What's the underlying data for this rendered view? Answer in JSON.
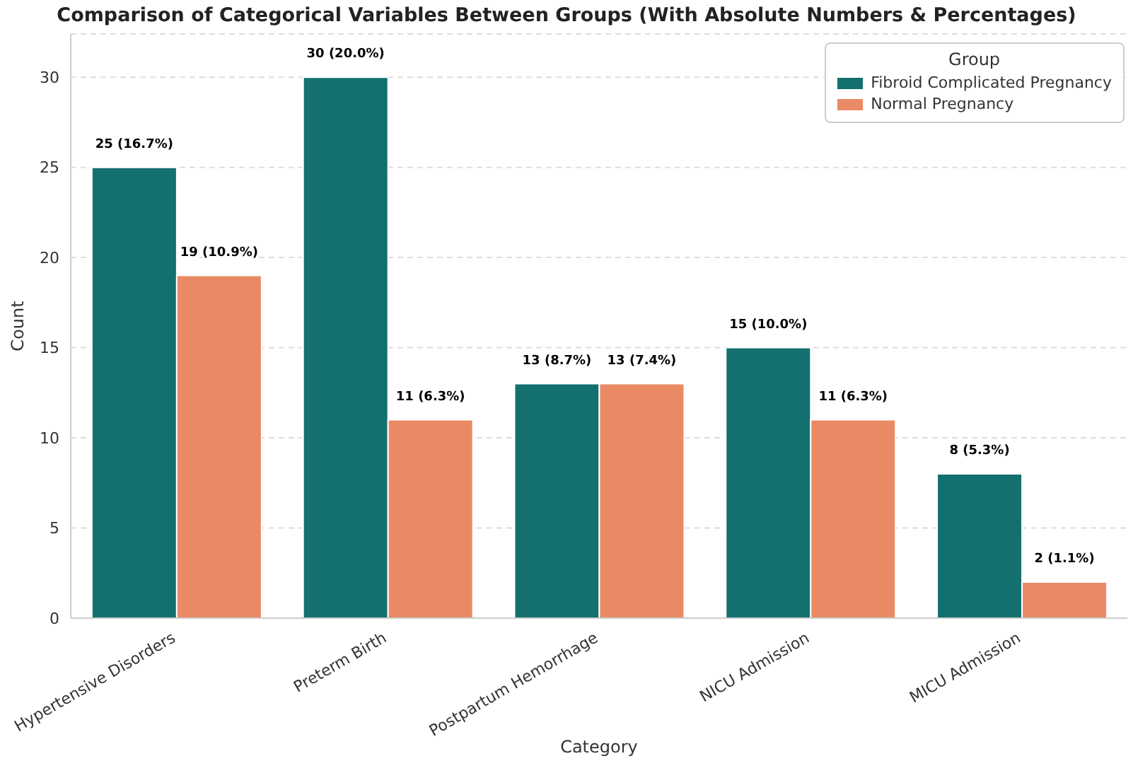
{
  "chart_data": {
    "type": "bar",
    "title": "Comparison of Categorical Variables Between Groups (With Absolute Numbers & Percentages)",
    "xlabel": "Category",
    "ylabel": "Count",
    "legend_title": "Group",
    "categories": [
      "Hypertensive Disorders",
      "Preterm Birth",
      "Postpartum Hemorrhage",
      "NICU Admission",
      "MICU Admission"
    ],
    "series": [
      {
        "name": "Fibroid Complicated Pregnancy",
        "color": "#13706e",
        "values": [
          25,
          30,
          13,
          15,
          8
        ],
        "value_labels": [
          "25 (16.7%)",
          "30 (20.0%)",
          "13 (8.7%)",
          "15 (10.0%)",
          "8 (5.3%)"
        ]
      },
      {
        "name": "Normal Pregnancy",
        "color": "#e98a65",
        "values": [
          19,
          11,
          13,
          11,
          2
        ],
        "value_labels": [
          "19 (10.9%)",
          "11 (6.3%)",
          "13 (7.4%)",
          "11 (6.3%)",
          "2 (1.1%)"
        ]
      }
    ],
    "ylim": [
      0,
      32.4
    ],
    "yticks": [
      0,
      5,
      10,
      15,
      20,
      25,
      30
    ],
    "grid": "y",
    "legend": "top right"
  }
}
